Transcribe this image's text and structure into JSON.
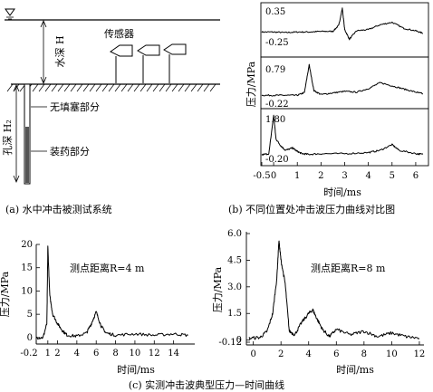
{
  "figure": {
    "panel_a": {
      "caption": "(a) 水中冲击被测试系统",
      "labels": {
        "sensor": "传感器",
        "water_depth": "水深 H",
        "hole_depth": "孔深 H₂",
        "unfilled": "无填塞部分",
        "charge": "装药部分"
      },
      "icons": [
        "water-surface-icon",
        "sensor-icon",
        "seabed-hatch-icon"
      ]
    },
    "panel_b": {
      "caption": "(b) 不同位置处冲击波压力曲线对比图",
      "ylabel": "压力/MPa",
      "xlabel": "时间/ms",
      "xticks": [
        "-0.5",
        "0",
        "1",
        "2",
        "3",
        "4",
        "5",
        "6"
      ]
    },
    "panel_c": {
      "caption": "(c) 实测冲击波典型压力—时间曲线",
      "left_ylabel": "压力/MPa",
      "left_xlabel": "时间/ms",
      "left_annotation": "测点距离R=4 m",
      "right_ylabel": "压力/MPa",
      "right_xlabel": "时间/ms",
      "right_annotation": "测点距离R=8 m"
    }
  },
  "chart_data": [
    {
      "type": "line",
      "panel": "b-top",
      "ylabel": "压力/MPa",
      "xlabel": "",
      "yticks": [
        "0.35",
        "-0.25"
      ],
      "ylim": [
        -0.25,
        0.35
      ],
      "xlim": [
        -0.5,
        6.5
      ],
      "x": [
        -0.5,
        0,
        0.5,
        1,
        1.5,
        2,
        2.5,
        2.75,
        2.9,
        3.0,
        3.2,
        3.5,
        4,
        4.5,
        5,
        5.5,
        6,
        6.3
      ],
      "values": [
        -0.06,
        -0.06,
        -0.07,
        -0.06,
        -0.06,
        -0.05,
        -0.05,
        0.05,
        0.33,
        -0.02,
        -0.18,
        -0.04,
        -0.02,
        0.06,
        0.1,
        0.0,
        -0.04,
        -0.08
      ]
    },
    {
      "type": "line",
      "panel": "b-middle",
      "ylabel": "压力/MPa",
      "xlabel": "",
      "yticks": [
        "0.79",
        "-0.22"
      ],
      "ylim": [
        -0.22,
        0.79
      ],
      "xlim": [
        -0.5,
        6.5
      ],
      "x": [
        -0.5,
        0,
        0.5,
        1,
        1.3,
        1.5,
        1.7,
        2,
        2.5,
        3,
        3.5,
        4,
        4.5,
        5,
        5.5,
        6,
        6.3
      ],
      "values": [
        -0.02,
        -0.02,
        -0.02,
        -0.02,
        0.05,
        0.75,
        0.1,
        0.0,
        0.04,
        0.08,
        0.06,
        0.15,
        0.3,
        0.22,
        0.14,
        0.06,
        0.02
      ]
    },
    {
      "type": "line",
      "panel": "b-bottom",
      "ylabel": "压力/MPa",
      "xlabel": "时间/ms",
      "yticks": [
        "1.80",
        "-0.20"
      ],
      "ylim": [
        -0.2,
        1.8
      ],
      "xlim": [
        -0.5,
        6.5
      ],
      "x": [
        -0.5,
        -0.2,
        0,
        0.1,
        0.3,
        0.5,
        0.8,
        1.0,
        1.2,
        1.5,
        2,
        3,
        4,
        4.5,
        5,
        5.3,
        6,
        6.3
      ],
      "values": [
        0.0,
        0.05,
        1.75,
        0.7,
        0.4,
        0.2,
        0.3,
        0.15,
        0.05,
        0.02,
        0.05,
        0.05,
        0.1,
        0.2,
        0.45,
        0.2,
        0.05,
        0.02
      ]
    },
    {
      "type": "line",
      "panel": "c-left",
      "annotation": "测点距离R=4 m",
      "ylabel": "压力/MPa",
      "xlabel": "时间/ms",
      "xticks": [
        "-0.2",
        "1",
        "2",
        "4",
        "6",
        "8",
        "10",
        "12",
        "14"
      ],
      "yticks": [
        "20",
        "15",
        "10",
        "5",
        "0"
      ],
      "ylim": [
        -1,
        20
      ],
      "xlim": [
        -0.2,
        16
      ],
      "x": [
        -0.2,
        0.5,
        0.9,
        1.0,
        1.2,
        1.5,
        2,
        2.5,
        3,
        4,
        5,
        5.5,
        6,
        6.5,
        7,
        8,
        10,
        12,
        14,
        15.5
      ],
      "values": [
        0,
        0,
        3,
        19.5,
        9,
        5,
        3,
        1.5,
        0.5,
        0.3,
        1,
        3,
        5.5,
        2.5,
        1,
        0.5,
        0.8,
        0.5,
        0.8,
        0.5
      ]
    },
    {
      "type": "line",
      "panel": "c-right",
      "annotation": "测点距离R=8 m",
      "ylabel": "压力/MPa",
      "xlabel": "时间/ms",
      "xticks": [
        "0",
        "2",
        "4",
        "6",
        "8",
        "10",
        "12"
      ],
      "yticks": [
        "6.0",
        "4.5",
        "3.0",
        "1.5",
        "0",
        "-0.12"
      ],
      "ylim": [
        -0.12,
        6.0
      ],
      "xlim": [
        -0.5,
        12.2
      ],
      "x": [
        -0.3,
        0.5,
        1.0,
        1.4,
        1.7,
        1.85,
        2.0,
        2.3,
        2.6,
        3.0,
        3.5,
        4.0,
        4.3,
        4.6,
        5.0,
        5.5,
        6,
        7,
        8,
        9,
        10,
        11,
        12
      ],
      "values": [
        0.1,
        0.15,
        0.5,
        1.5,
        3.5,
        5.6,
        4.5,
        3.2,
        0.5,
        0.3,
        1.0,
        1.5,
        1.7,
        1.2,
        0.6,
        0.2,
        0.6,
        0.3,
        0.5,
        0.2,
        0.4,
        0.2,
        0.1
      ]
    }
  ]
}
